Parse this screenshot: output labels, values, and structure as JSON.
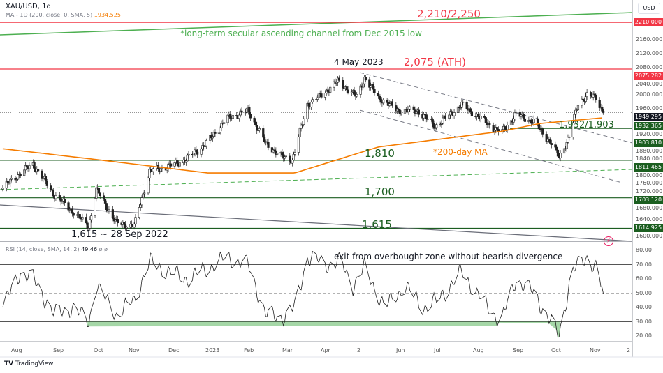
{
  "header": {
    "symbol": "XAU/USD, 1d",
    "ma_label": "MA - 1D (200, close, 0, SMA, 5)",
    "ma_value": "1934.525",
    "rsi_label": "RSI (14, close, SMA, 14, 2)",
    "rsi_value": "49.46",
    "rsi_extra": "ø ø"
  },
  "colors": {
    "up": "#ffffff",
    "down": "#222222",
    "ma": "#f57c00",
    "red": "#f23645",
    "green": "#1b5e20",
    "channel": "#4caf50"
  },
  "annotations": {
    "target": "2,210/2,250",
    "channel_note": "*long-term secular ascending channel from Dec 2015 low",
    "ath_date": "4 May 2023",
    "ath": "2,075 (ATH)",
    "support_a": "1,932/1,903",
    "ma_note": "*200-day MA",
    "s1810": "1,810",
    "s1700": "1,700",
    "s1615": "1,615",
    "low_note": "1,615 ~ 28 Sep 2022",
    "rsi_note": "exit from overbought zone without bearish divergence"
  },
  "axis": {
    "currency": "USD",
    "price_ticks": [
      "2160.000",
      "2120.000",
      "2080.000",
      "2040.000",
      "2000.000",
      "1960.000",
      "1920.000",
      "1880.000",
      "1840.000",
      "1800.000",
      "1760.000",
      "1720.000",
      "1680.000",
      "1640.000",
      "1600.000"
    ],
    "badges": [
      {
        "v": "2210.000",
        "c": "#f23645",
        "p": 2210
      },
      {
        "v": "2075.282",
        "c": "#f23645",
        "p": 2075.282
      },
      {
        "v": "1949.295",
        "c": "#131722",
        "p": 1949.295
      },
      {
        "v": "1932.365",
        "c": "#1b5e20",
        "p": 1932.365
      },
      {
        "v": "1903.810",
        "c": "#1b5e20",
        "p": 1903.81
      },
      {
        "v": "1811.465",
        "c": "#1b5e20",
        "p": 1811.465
      },
      {
        "v": "1703.120",
        "c": "#1b5e20",
        "p": 1703.12
      },
      {
        "v": "1614.925",
        "c": "#1b5e20",
        "p": 1614.925
      }
    ],
    "rsi_ticks": [
      "80.00",
      "70.00",
      "60.00",
      "50.00",
      "40.00",
      "30.00",
      "20.00"
    ],
    "months": [
      "Aug",
      "Sep",
      "Oct",
      "Nov",
      "Dec",
      "2023",
      "Feb",
      "Mar",
      "Apr",
      "2",
      "Jun",
      "Jul",
      "Aug",
      "Sep",
      "Oct",
      "Nov",
      "2"
    ]
  },
  "footer": {
    "brand": "TradingView"
  },
  "chart_data": {
    "type": "candlestick",
    "ylim": [
      1590,
      2270
    ],
    "rsi_ylim": [
      10,
      85
    ],
    "levels": [
      2210,
      2075.282,
      1903.81,
      1811.465,
      1703.12,
      1614.925
    ],
    "close": [
      [
        "2022-07-22",
        1731
      ],
      [
        "2022-08-05",
        1775
      ],
      [
        "2022-08-15",
        1800
      ],
      [
        "2022-09-01",
        1711
      ],
      [
        "2022-09-15",
        1665
      ],
      [
        "2022-09-28",
        1620
      ],
      [
        "2022-10-04",
        1728
      ],
      [
        "2022-10-20",
        1630
      ],
      [
        "2022-11-03",
        1622
      ],
      [
        "2022-11-15",
        1780
      ],
      [
        "2022-12-01",
        1795
      ],
      [
        "2022-12-13",
        1812
      ],
      [
        "2022-12-30",
        1860
      ],
      [
        "2023-01-15",
        1932
      ],
      [
        "2023-02-01",
        1955
      ],
      [
        "2023-02-15",
        1860
      ],
      [
        "2023-02-28",
        1821
      ],
      [
        "2023-03-08",
        1813
      ],
      [
        "2023-03-20",
        1972
      ],
      [
        "2023-03-31",
        2000
      ],
      [
        "2023-04-13",
        2040
      ],
      [
        "2023-04-28",
        1995
      ],
      [
        "2023-05-04",
        2050
      ],
      [
        "2023-05-15",
        1993
      ],
      [
        "2023-05-31",
        1955
      ],
      [
        "2023-06-15",
        1955
      ],
      [
        "2023-06-29",
        1910
      ],
      [
        "2023-07-20",
        1972
      ],
      [
        "2023-08-20",
        1890
      ],
      [
        "2023-09-01",
        1945
      ],
      [
        "2023-09-15",
        1922
      ],
      [
        "2023-09-28",
        1865
      ],
      [
        "2023-10-05",
        1820
      ],
      [
        "2023-10-13",
        1880
      ],
      [
        "2023-10-20",
        1975
      ],
      [
        "2023-10-27",
        2000
      ],
      [
        "2023-11-03",
        1992
      ],
      [
        "2023-11-09",
        1949.295
      ]
    ],
    "ma200": [
      [
        "2022-07-22",
        1845
      ],
      [
        "2022-10-01",
        1815
      ],
      [
        "2022-12-31",
        1775
      ],
      [
        "2023-03-10",
        1775
      ],
      [
        "2023-05-15",
        1850
      ],
      [
        "2023-08-20",
        1895
      ],
      [
        "2023-09-20",
        1918
      ],
      [
        "2023-11-09",
        1934.525
      ]
    ],
    "rsi": [
      [
        "2022-07-22",
        40
      ],
      [
        "2022-08-05",
        65
      ],
      [
        "2022-08-15",
        60
      ],
      [
        "2022-09-01",
        35
      ],
      [
        "2022-09-15",
        40
      ],
      [
        "2022-09-28",
        30
      ],
      [
        "2022-10-04",
        55
      ],
      [
        "2022-10-20",
        35
      ],
      [
        "2022-11-03",
        45
      ],
      [
        "2022-11-15",
        72
      ],
      [
        "2022-12-01",
        65
      ],
      [
        "2022-12-15",
        60
      ],
      [
        "2023-01-01",
        68
      ],
      [
        "2023-01-15",
        75
      ],
      [
        "2023-02-01",
        70
      ],
      [
        "2023-02-15",
        35
      ],
      [
        "2023-02-28",
        33
      ],
      [
        "2023-03-10",
        40
      ],
      [
        "2023-03-20",
        75
      ],
      [
        "2023-04-05",
        70
      ],
      [
        "2023-04-15",
        72
      ],
      [
        "2023-04-25",
        55
      ],
      [
        "2023-05-04",
        68
      ],
      [
        "2023-05-20",
        40
      ],
      [
        "2023-06-05",
        55
      ],
      [
        "2023-06-20",
        40
      ],
      [
        "2023-07-01",
        45
      ],
      [
        "2023-07-20",
        65
      ],
      [
        "2023-08-05",
        45
      ],
      [
        "2023-08-20",
        30
      ],
      [
        "2023-09-01",
        60
      ],
      [
        "2023-09-15",
        50
      ],
      [
        "2023-09-25",
        35
      ],
      [
        "2023-10-05",
        20
      ],
      [
        "2023-10-15",
        65
      ],
      [
        "2023-10-27",
        75
      ],
      [
        "2023-11-03",
        68
      ],
      [
        "2023-11-09",
        49.46
      ]
    ],
    "rsi_levels": [
      70,
      50,
      30
    ]
  }
}
